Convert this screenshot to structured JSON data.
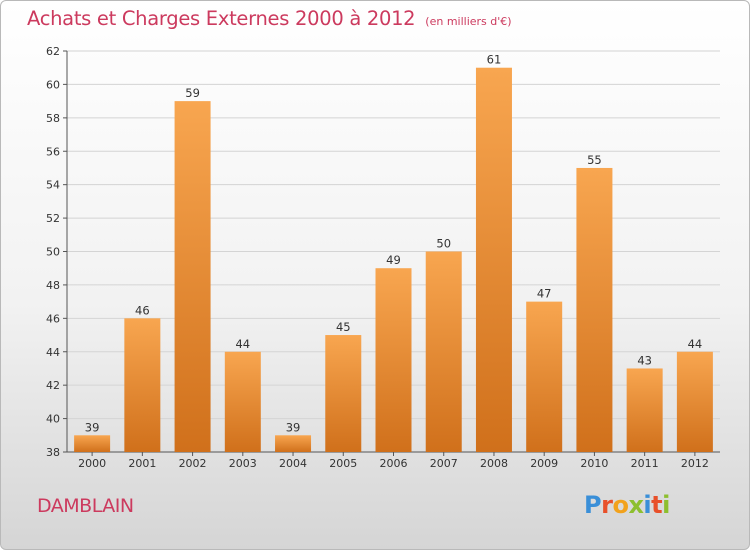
{
  "colors": {
    "title": "#cc3a5e",
    "bar_light": "#f8a650",
    "bar_dark": "#d0701b",
    "grid": "#d4d4d4"
  },
  "city": "DAMBLAIN",
  "logo": {
    "letters": [
      {
        "ch": "P",
        "color": "#3a8fd8"
      },
      {
        "ch": "r",
        "color": "#e8502a"
      },
      {
        "ch": "o",
        "color": "#f2a21c"
      },
      {
        "ch": "x",
        "color": "#8dbf2e"
      },
      {
        "ch": "i",
        "color": "#3a8fd8"
      },
      {
        "ch": "t",
        "color": "#e8502a"
      },
      {
        "ch": "i",
        "color": "#8dbf2e"
      }
    ]
  },
  "chart_data": {
    "type": "bar",
    "title": "Achats et Charges Externes 2000 à 2012",
    "unit": "(en milliers d'€)",
    "xlabel": "",
    "ylabel": "",
    "categories": [
      "2000",
      "2001",
      "2002",
      "2003",
      "2004",
      "2005",
      "2006",
      "2007",
      "2008",
      "2009",
      "2010",
      "2011",
      "2012"
    ],
    "values": [
      39,
      46,
      59,
      44,
      39,
      45,
      49,
      50,
      61,
      47,
      55,
      43,
      44
    ],
    "data_labels": [
      "39",
      "46",
      "59",
      "44",
      "39",
      "45",
      "49",
      "50",
      "61",
      "47",
      "55",
      "43",
      "44"
    ],
    "ylim": [
      38,
      62
    ],
    "yticks": [
      38,
      40,
      42,
      44,
      46,
      48,
      50,
      52,
      54,
      56,
      58,
      60,
      62
    ],
    "grid": true,
    "legend": "none"
  }
}
